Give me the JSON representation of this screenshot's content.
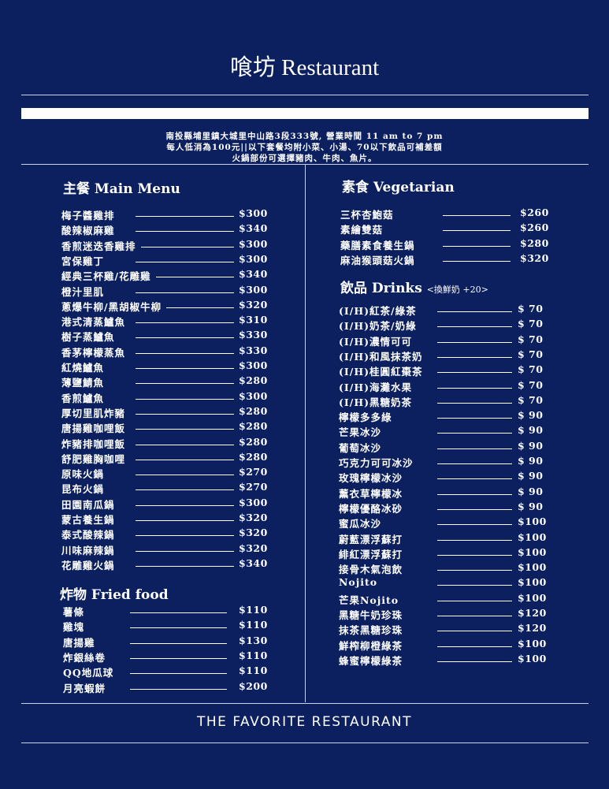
{
  "header": {
    "title": "喰坊 Restaurant",
    "info_lines": [
      "南投縣埔里鎮大城里中山路3段333號, 營業時間 11 am to 7 pm",
      "每人低消為100元||以下套餐均附小菜、小湯、70以下飲品可補差額",
      "火鍋部份可選擇豬肉、牛肉、魚片。"
    ]
  },
  "sections": {
    "main": {
      "heading": "主餐 Main Menu",
      "items": [
        {
          "name": "梅子醬雞排",
          "price": "$300"
        },
        {
          "name": "酸辣椒麻雞",
          "price": "$340"
        },
        {
          "name": "香煎迷迭香雞排",
          "price": "$300"
        },
        {
          "name": "宮保雞丁",
          "price": "$300"
        },
        {
          "name": "經典三杯雞/花雕雞",
          "price": "$340"
        },
        {
          "name": "橙汁里肌",
          "price": "$300"
        },
        {
          "name": "蔥爆牛柳/黑胡椒牛柳",
          "price": "$320"
        },
        {
          "name": "港式清蒸鱸魚",
          "price": "$310"
        },
        {
          "name": "樹子蒸鱸魚",
          "price": "$330"
        },
        {
          "name": "香茅檸檬蒸魚",
          "price": "$330"
        },
        {
          "name": "紅燒鱸魚",
          "price": "$300"
        },
        {
          "name": "薄鹽鯖魚",
          "price": "$280"
        },
        {
          "name": "香煎鱸魚",
          "price": "$300"
        },
        {
          "name": "厚切里肌炸豬",
          "price": "$280"
        },
        {
          "name": "唐揚雞咖哩飯",
          "price": "$280"
        },
        {
          "name": "炸豬排咖哩飯",
          "price": "$280"
        },
        {
          "name": "舒肥雞胸咖哩",
          "price": "$280"
        },
        {
          "name": "原味火鍋",
          "price": "$270"
        },
        {
          "name": "昆布火鍋",
          "price": "$270"
        },
        {
          "name": "田園南瓜鍋",
          "price": "$300"
        },
        {
          "name": "蒙古養生鍋",
          "price": "$320"
        },
        {
          "name": "泰式酸辣鍋",
          "price": "$320"
        },
        {
          "name": "川味麻辣鍋",
          "price": "$320"
        },
        {
          "name": "花雕雞火鍋",
          "price": "$340"
        }
      ]
    },
    "fried": {
      "heading": "炸物 Fried food",
      "items": [
        {
          "name": "薯條",
          "price": "$110"
        },
        {
          "name": "雞塊",
          "price": "$110"
        },
        {
          "name": "唐揚雞",
          "price": "$130"
        },
        {
          "name": "炸銀絲卷",
          "price": "$110"
        },
        {
          "name": "QQ地瓜球",
          "price": "$110"
        },
        {
          "name": "月亮蝦餅",
          "price": "$200"
        }
      ]
    },
    "veg": {
      "heading": "素食 Vegetarian",
      "items": [
        {
          "name": "三杯杏鮑菇",
          "price": "$260"
        },
        {
          "name": "素繪雙菇",
          "price": "$260"
        },
        {
          "name": "藥膳素食養生鍋",
          "price": "$280"
        },
        {
          "name": "麻油猴頭菇火鍋",
          "price": "$320"
        }
      ]
    },
    "drinks": {
      "heading": "飲品 Drinks",
      "heading_note": "<換鮮奶 +20>",
      "items": [
        {
          "name": "(I/H)紅茶/綠茶",
          "price": "$ 70"
        },
        {
          "name": "(I/H)奶茶/奶綠",
          "price": "$ 70"
        },
        {
          "name": "(I/H)濃情可可",
          "price": "$ 70"
        },
        {
          "name": "(I/H)和風抹茶奶",
          "price": "$ 70"
        },
        {
          "name": "(I/H)桂圓紅棗茶",
          "price": "$ 70"
        },
        {
          "name": "(I/H)海灘水果",
          "price": "$ 70"
        },
        {
          "name": "(I/H)黑糖奶茶",
          "price": "$ 70"
        },
        {
          "name": "檸檬多多綠",
          "price": "$ 90"
        },
        {
          "name": "芒果冰沙",
          "price": "$ 90"
        },
        {
          "name": "葡萄冰沙",
          "price": "$ 90"
        },
        {
          "name": "巧克力可可冰沙",
          "price": "$ 90"
        },
        {
          "name": "玫瑰檸檬冰沙",
          "price": "$ 90"
        },
        {
          "name": "薰衣草檸檬冰",
          "price": "$ 90"
        },
        {
          "name": "檸檬優酪冰砂",
          "price": "$ 90"
        },
        {
          "name": "蜜瓜冰沙",
          "price": "$100"
        },
        {
          "name": "蔚藍漂浮蘇打",
          "price": "$100"
        },
        {
          "name": "緋紅漂浮蘇打",
          "price": "$100"
        },
        {
          "name": "接骨木氣泡飲",
          "price": "$100"
        },
        {
          "name": "Nojito",
          "price": "$100"
        },
        {
          "name": "芒果Nojito",
          "price": "$100"
        },
        {
          "name": "黑糖牛奶珍珠",
          "price": "$120"
        },
        {
          "name": "抹茶黑糖珍珠",
          "price": "$120"
        },
        {
          "name": "鮮榨柳橙綠茶",
          "price": "$100"
        },
        {
          "name": "蜂蜜檸檬綠茶",
          "price": "$100"
        }
      ]
    }
  },
  "footer": {
    "text": "THE FAVORITE RESTAURANT"
  }
}
